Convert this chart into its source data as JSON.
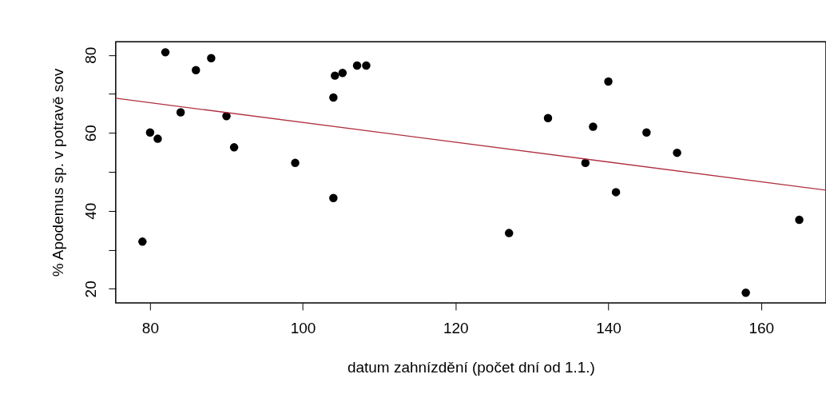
{
  "chart_data": {
    "type": "scatter",
    "xlabel": "datum zahnízdění (počet dní od 1.1.)",
    "ylabel": "% Apodemus sp. v potravě sov",
    "x": [
      79,
      80,
      81,
      82,
      84,
      86,
      88,
      90,
      91,
      99,
      104.2,
      105.2,
      104,
      104,
      107.1,
      108.3,
      127,
      132.1,
      137,
      138,
      140,
      141,
      145,
      149,
      158,
      165
    ],
    "series": [
      {
        "color": "#000000",
        "marker": "circle",
        "values": [
          32.1,
          60.1,
          58.5,
          80.7,
          65.3,
          76.1,
          79.2,
          64.3,
          56.3,
          52.3,
          74.7,
          75.4,
          69.1,
          43.3,
          77.3,
          77.3,
          34.3,
          63.8,
          52.3,
          61.6,
          73.2,
          44.8,
          60.1,
          54.9,
          19.0,
          37.7
        ]
      },
      {
        "type": "line",
        "color": "#b03040",
        "x": [
          75.5,
          168.5
        ],
        "values": [
          68.9,
          45.3
        ]
      }
    ],
    "xlim": [
      75.5,
      168.5
    ],
    "xticks": [
      80,
      100,
      120,
      140,
      160
    ],
    "ylim": [
      16.4,
      83.4
    ],
    "yticks": [
      20,
      {
        "value": 30,
        "label": null
      },
      40,
      {
        "value": 50,
        "label": null
      },
      60,
      {
        "value": 70,
        "label": null
      },
      80
    ],
    "grid": false
  }
}
